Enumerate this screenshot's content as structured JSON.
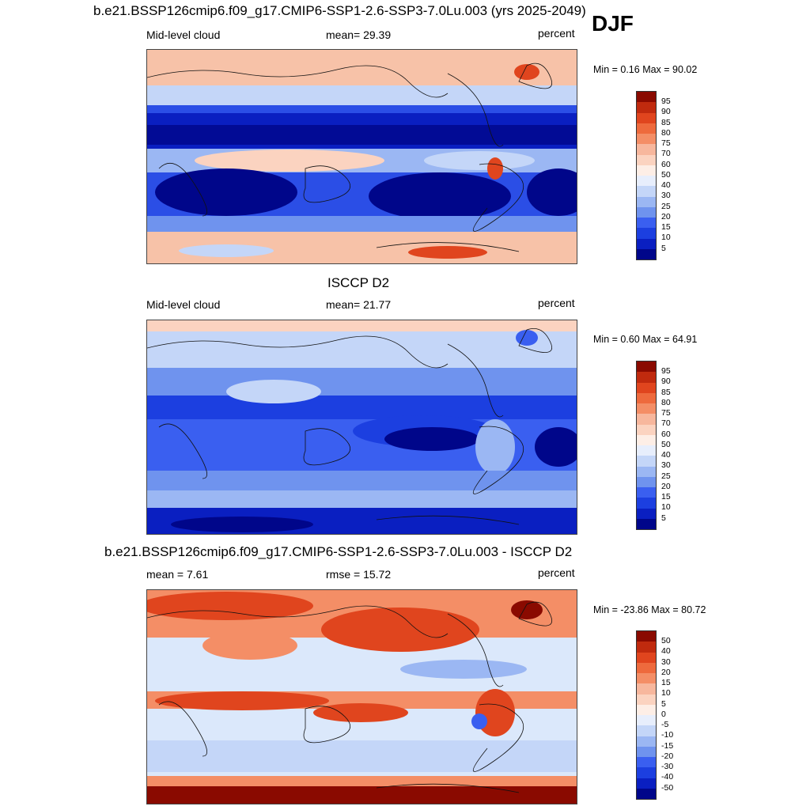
{
  "season": "DJF",
  "panels": [
    {
      "title": "b.e21.BSSP126cmip6.f09_g17.CMIP6-SSP1-2.6-SSP3-7.0Lu.003 (yrs 2025-2049)",
      "left_label": "Mid-level cloud",
      "center_label": "mean=  29.39",
      "right_label": "percent",
      "minmax": "Min =   0.16 Max =  90.02",
      "colorbar_labels": [
        "95",
        "90",
        "85",
        "80",
        "75",
        "70",
        "60",
        "50",
        "40",
        "30",
        "25",
        "20",
        "15",
        "10",
        "5"
      ],
      "colors": {
        "ocean_bg": "#6f93ee",
        "high": "#f7b79d",
        "low": "#0a1fc1",
        "min_band": "#00068a"
      }
    },
    {
      "title": "ISCCP D2",
      "left_label": "Mid-level cloud",
      "center_label": "mean=  21.77",
      "right_label": "percent",
      "minmax": "Min =   0.60 Max =  64.91",
      "colorbar_labels": [
        "95",
        "90",
        "85",
        "80",
        "75",
        "70",
        "60",
        "50",
        "40",
        "30",
        "25",
        "20",
        "15",
        "10",
        "5"
      ],
      "colors": {
        "ocean_bg": "#4f74ea",
        "high": "#fbd3c0",
        "low": "#0a1fc1",
        "min_band": "#00068a"
      }
    },
    {
      "title": "b.e21.BSSP126cmip6.f09_g17.CMIP6-SSP1-2.6-SSP3-7.0Lu.003 - ISCCP D2",
      "left_label": "mean =   7.61",
      "center_label": "rmse =  15.72",
      "right_label": "percent",
      "minmax": "Min = -23.86 Max =  80.72",
      "colorbar_labels": [
        "50",
        "40",
        "30",
        "20",
        "15",
        "10",
        "5",
        "0",
        "-5",
        "-10",
        "-15",
        "-20",
        "-30",
        "-40",
        "-50"
      ],
      "colors": {
        "ocean_bg": "#dbe8fb",
        "high": "#e0451e",
        "low": "#6f93ee",
        "min_band": "#8a0a00"
      }
    }
  ],
  "colorbar_colors": [
    "#00068a",
    "#0a1fc1",
    "#1c3fe0",
    "#3a5ff0",
    "#6f93ee",
    "#9bb7f3",
    "#c4d6f8",
    "#e7eefc",
    "#fdeee6",
    "#fbd3c0",
    "#f7b79d",
    "#f48e66",
    "#ee6a3d",
    "#e0451e",
    "#c02a0e",
    "#8a0a00"
  ]
}
